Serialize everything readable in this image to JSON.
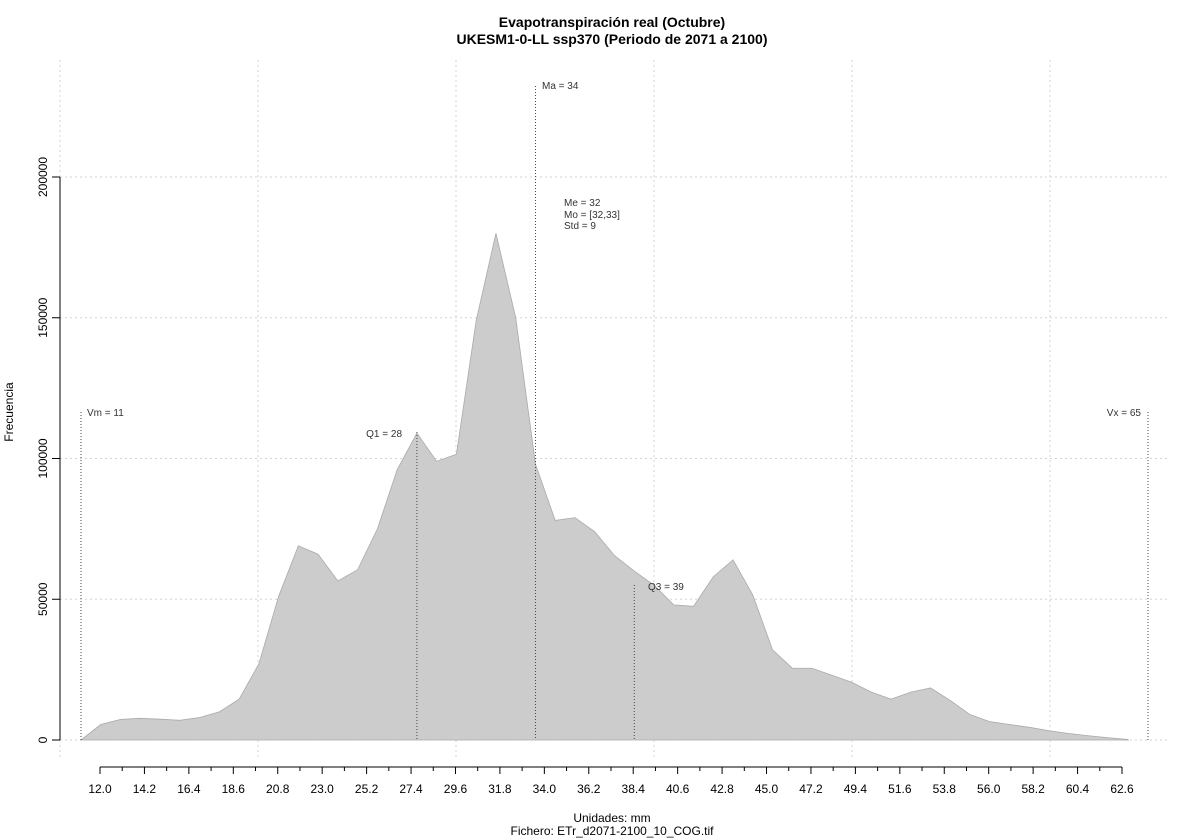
{
  "chart_data": {
    "type": "area",
    "title": "Evapotranspiración real (Octubre)",
    "subtitle": "UKESM1-0-LL ssp370 (Periodo de 2071 a 2100)",
    "xlabel": "Unidades: mm",
    "caption": "Fichero: ETr_d2071-2100_10_COG.tif",
    "ylabel": "Frecuencia",
    "xlim": [
      10.2,
      65
    ],
    "ylim": [
      0,
      230000
    ],
    "x_ticks": [
      "12.0",
      "14.2",
      "16.4",
      "18.6",
      "20.8",
      "23.0",
      "25.2",
      "27.4",
      "29.6",
      "31.8",
      "34.0",
      "36.2",
      "38.4",
      "40.6",
      "42.8",
      "45.0",
      "47.2",
      "49.4",
      "51.6",
      "53.8",
      "56.0",
      "58.2",
      "60.4",
      "62.6"
    ],
    "y_ticks": [
      0,
      50000,
      100000,
      150000,
      200000
    ],
    "grid": true,
    "color": "#cccccc",
    "series": [
      {
        "x": [
          11,
          12,
          13,
          14,
          15,
          16,
          17,
          18,
          19,
          20,
          21,
          22,
          23,
          24,
          25,
          26,
          27,
          28,
          29,
          30,
          31,
          32,
          33,
          34,
          35,
          36,
          37,
          38,
          39,
          40,
          41,
          42,
          43,
          44,
          45,
          46,
          47,
          48,
          49,
          50,
          51,
          52,
          53,
          54,
          55,
          56,
          57,
          58,
          59,
          60,
          61,
          62,
          63,
          64
        ],
        "values": [
          0,
          5500,
          7300,
          7700,
          7400,
          7000,
          8000,
          10000,
          14500,
          27000,
          51000,
          69000,
          66000,
          56500,
          60500,
          75000,
          96000,
          109000,
          99000,
          101500,
          149000,
          180000,
          150000,
          98000,
          78000,
          79000,
          74000,
          65500,
          60000,
          55000,
          48000,
          47500,
          58000,
          64000,
          51500,
          32000,
          25500,
          25500,
          23000,
          20500,
          17000,
          14500,
          17000,
          18500,
          14000,
          9000,
          6500,
          5500,
          4500,
          3300,
          2300,
          1500,
          800,
          200
        ]
      }
    ],
    "annotations": {
      "vm": "Vm = 11",
      "q1": "Q1 = 28",
      "ma": "Ma = 34",
      "me": "Me = 32",
      "mo": "Mo = [32,33]",
      "std": "Std = 9",
      "q3": "Q3 = 39",
      "vx": "Vx = 65"
    },
    "annotation_values": {
      "vm": 11,
      "q1": 28,
      "ma": 34,
      "q3": 39,
      "vx": 65
    }
  }
}
